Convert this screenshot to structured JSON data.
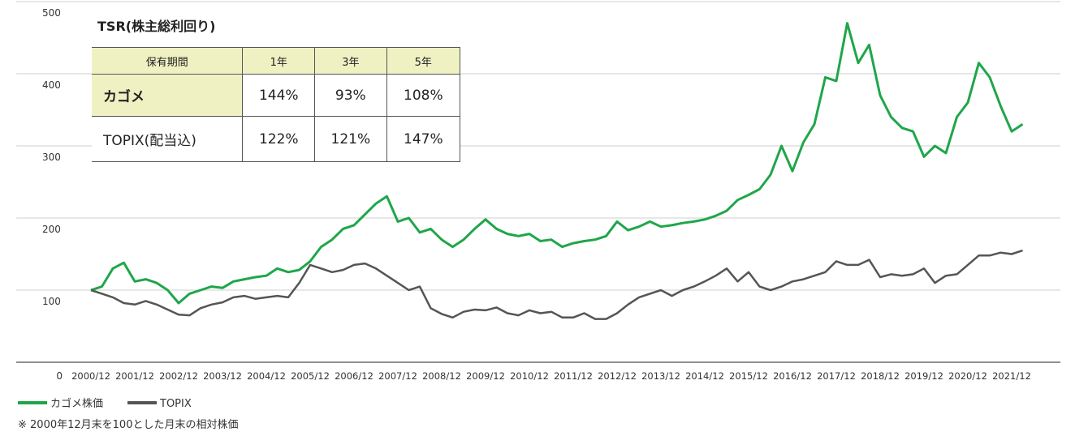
{
  "chart_data": {
    "type": "line",
    "categories": [
      "2000/12",
      null,
      null,
      null,
      "2001/12",
      null,
      null,
      null,
      "2002/12",
      null,
      null,
      null,
      "2003/12",
      null,
      null,
      null,
      "2004/12",
      null,
      null,
      null,
      "2005/12",
      null,
      null,
      null,
      "2006/12",
      null,
      null,
      null,
      "2007/12",
      null,
      null,
      null,
      "2008/12",
      null,
      null,
      null,
      "2009/12",
      null,
      null,
      null,
      "2010/12",
      null,
      null,
      null,
      "2011/12",
      null,
      null,
      null,
      "2012/12",
      null,
      null,
      null,
      "2013/12",
      null,
      null,
      null,
      "2014/12",
      null,
      null,
      null,
      "2015/12",
      null,
      null,
      null,
      "2016/12",
      null,
      null,
      null,
      "2017/12",
      null,
      null,
      null,
      "2018/12",
      null,
      null,
      null,
      "2019/12",
      null,
      null,
      null,
      "2020/12",
      null,
      null,
      null,
      "2021/12",
      null
    ],
    "series": [
      {
        "name": "カゴメ株価",
        "color": "#1fa64a",
        "values": [
          100,
          105,
          130,
          138,
          112,
          115,
          110,
          100,
          82,
          95,
          100,
          105,
          103,
          112,
          115,
          118,
          120,
          130,
          125,
          128,
          140,
          160,
          170,
          185,
          190,
          205,
          220,
          230,
          195,
          200,
          180,
          185,
          170,
          160,
          170,
          185,
          198,
          185,
          178,
          175,
          178,
          168,
          170,
          160,
          165,
          168,
          170,
          175,
          195,
          183,
          188,
          195,
          188,
          190,
          193,
          195,
          198,
          203,
          210,
          225,
          232,
          240,
          260,
          300,
          265,
          305,
          330,
          395,
          390,
          470,
          415,
          440,
          370,
          340,
          325,
          320,
          285,
          300,
          290,
          340,
          360,
          415,
          395,
          355,
          320,
          330
        ]
      },
      {
        "name": "TOPIX",
        "color": "#555555",
        "values": [
          100,
          95,
          90,
          82,
          80,
          85,
          80,
          73,
          66,
          65,
          75,
          80,
          83,
          90,
          92,
          88,
          90,
          92,
          90,
          110,
          135,
          130,
          125,
          128,
          135,
          137,
          130,
          120,
          110,
          100,
          105,
          75,
          67,
          62,
          70,
          73,
          72,
          76,
          68,
          65,
          72,
          68,
          70,
          62,
          62,
          68,
          60,
          60,
          68,
          80,
          90,
          95,
          100,
          92,
          100,
          105,
          112,
          120,
          130,
          112,
          125,
          105,
          100,
          105,
          112,
          115,
          120,
          125,
          140,
          135,
          135,
          142,
          118,
          122,
          120,
          122,
          130,
          110,
          120,
          122,
          135,
          148,
          148,
          152,
          150,
          155
        ]
      }
    ],
    "ylim": [
      0,
      500
    ],
    "yticks": [
      0,
      100,
      200,
      300,
      400,
      500
    ],
    "grid": true,
    "note": "※ 2000年12月末を100とした月末の相対株価"
  },
  "table": {
    "title": "TSR(株主総利回り)",
    "header": [
      "保有期間",
      "1年",
      "3年",
      "5年"
    ],
    "rows": [
      [
        "カゴメ",
        "144%",
        "93%",
        "108%"
      ],
      [
        "TOPIX(配当込)",
        "122%",
        "121%",
        "147%"
      ]
    ]
  }
}
